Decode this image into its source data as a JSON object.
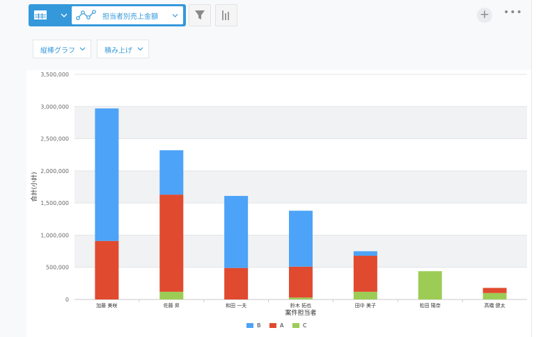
{
  "toolbar": {
    "graph_name": "担当者別売上金額",
    "chart_type_label": "縦棒グラフ",
    "stack_label": "積み上げ",
    "add_label": "+",
    "more_label": "•••"
  },
  "icons": [
    "table-icon",
    "chevron-down-icon",
    "line-graph-icon",
    "filter-icon",
    "bar-chart-icon",
    "plus-icon",
    "more-icon"
  ],
  "colors": {
    "accent": "#3498db",
    "B": "#4da3f7",
    "A": "#e04a2f",
    "C": "#9ccc55"
  },
  "chart_data": {
    "type": "bar",
    "stacked": true,
    "xlabel": "案件担当者",
    "ylabel": "合計(小計)",
    "ylim": [
      0,
      3500000
    ],
    "yticks": [
      "0",
      "500,000",
      "1,000,000",
      "1,500,000",
      "2,000,000",
      "2,500,000",
      "3,000,000",
      "3,500,000"
    ],
    "grid": true,
    "legend": "bottom",
    "categories": [
      "加藤 美咲",
      "佐藤 昇",
      "和田 一夫",
      "鈴木 拓也",
      "田中 美子",
      "松田 陽奈",
      "高橋 健太"
    ],
    "series": [
      {
        "name": "C",
        "color": "#9ccc55",
        "values": [
          0,
          120000,
          0,
          30000,
          120000,
          440000,
          100000
        ]
      },
      {
        "name": "A",
        "color": "#e04a2f",
        "values": [
          910000,
          1510000,
          490000,
          480000,
          560000,
          0,
          80000
        ]
      },
      {
        "name": "B",
        "color": "#4da3f7",
        "values": [
          2060000,
          690000,
          1120000,
          870000,
          70000,
          0,
          0
        ]
      }
    ],
    "legend_order": [
      "B",
      "A",
      "C"
    ]
  }
}
